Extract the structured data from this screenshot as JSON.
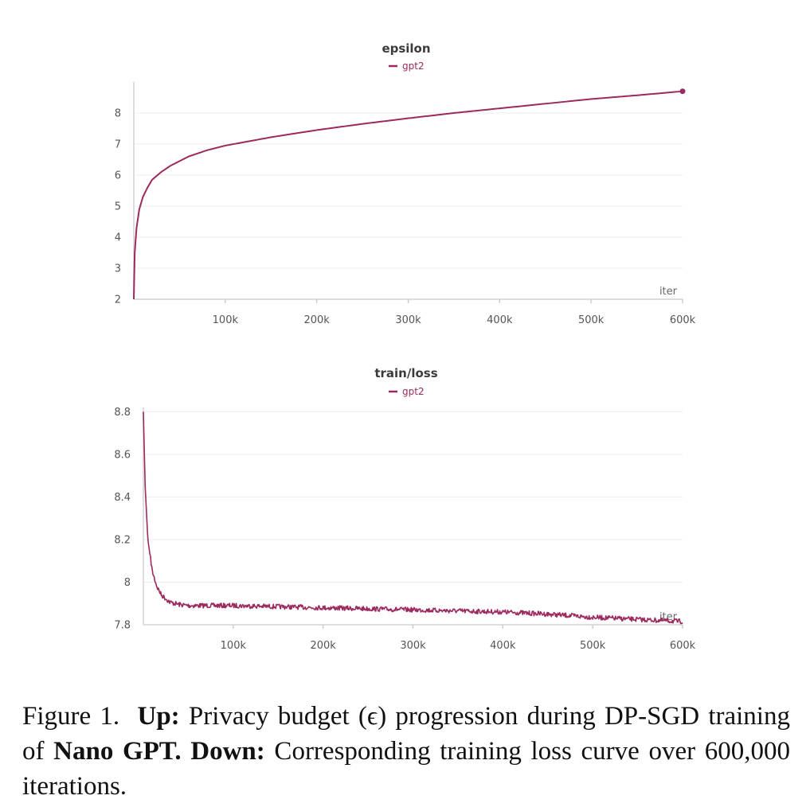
{
  "chart_data": [
    {
      "type": "line",
      "title": "epsilon",
      "xlabel": "iter",
      "ylabel": "",
      "xlim": [
        0,
        600000
      ],
      "ylim": [
        2,
        9
      ],
      "xticks": [
        100000,
        200000,
        300000,
        400000,
        500000,
        600000
      ],
      "xtick_labels": [
        "100k",
        "200k",
        "300k",
        "400k",
        "500k",
        "600k"
      ],
      "yticks": [
        2,
        3,
        4,
        5,
        6,
        7,
        8
      ],
      "ytick_labels": [
        "2",
        "3",
        "4",
        "5",
        "6",
        "7",
        "8"
      ],
      "grid": true,
      "legend": "top-center",
      "series": [
        {
          "name": "gpt2",
          "color": "#9c2a5f",
          "x": [
            0,
            1000,
            3000,
            6000,
            10000,
            15000,
            20000,
            30000,
            40000,
            50000,
            60000,
            80000,
            100000,
            150000,
            200000,
            250000,
            300000,
            350000,
            400000,
            450000,
            500000,
            550000,
            600000
          ],
          "y": [
            2.0,
            3.5,
            4.3,
            4.9,
            5.3,
            5.6,
            5.85,
            6.1,
            6.3,
            6.45,
            6.6,
            6.8,
            6.95,
            7.22,
            7.45,
            7.65,
            7.83,
            8.0,
            8.15,
            8.3,
            8.45,
            8.57,
            8.7
          ]
        }
      ]
    },
    {
      "type": "line",
      "title": "train/loss",
      "xlabel": "iter",
      "ylabel": "",
      "xlim": [
        0,
        600000
      ],
      "ylim": [
        7.8,
        8.82
      ],
      "xticks": [
        100000,
        200000,
        300000,
        400000,
        500000,
        600000
      ],
      "xtick_labels": [
        "100k",
        "200k",
        "300k",
        "400k",
        "500k",
        "600k"
      ],
      "yticks": [
        7.8,
        8,
        8.2,
        8.4,
        8.6,
        8.8
      ],
      "ytick_labels": [
        "7.8",
        "8",
        "8.2",
        "8.4",
        "8.6",
        "8.8"
      ],
      "grid": true,
      "legend": "top-center",
      "series": [
        {
          "name": "gpt2",
          "color": "#9c2a5f",
          "x": [
            0,
            2000,
            5000,
            10000,
            15000,
            20000,
            30000,
            40000,
            50000,
            100000,
            150000,
            200000,
            250000,
            300000,
            350000,
            400000,
            450000,
            500000,
            550000,
            600000
          ],
          "y": [
            8.8,
            8.45,
            8.2,
            8.05,
            7.98,
            7.94,
            7.905,
            7.895,
            7.89,
            7.89,
            7.885,
            7.88,
            7.875,
            7.87,
            7.865,
            7.86,
            7.85,
            7.835,
            7.825,
            7.815
          ]
        }
      ]
    }
  ],
  "caption": {
    "prefix": "Figure 1.",
    "up_label": "Up:",
    "up_text": " Privacy budget (ϵ) progression during DP-SGD training of ",
    "model": "Nano GPT.",
    "down_label": " Down:",
    "down_text": " Corresponding training loss curve over 600,000 iterations."
  }
}
